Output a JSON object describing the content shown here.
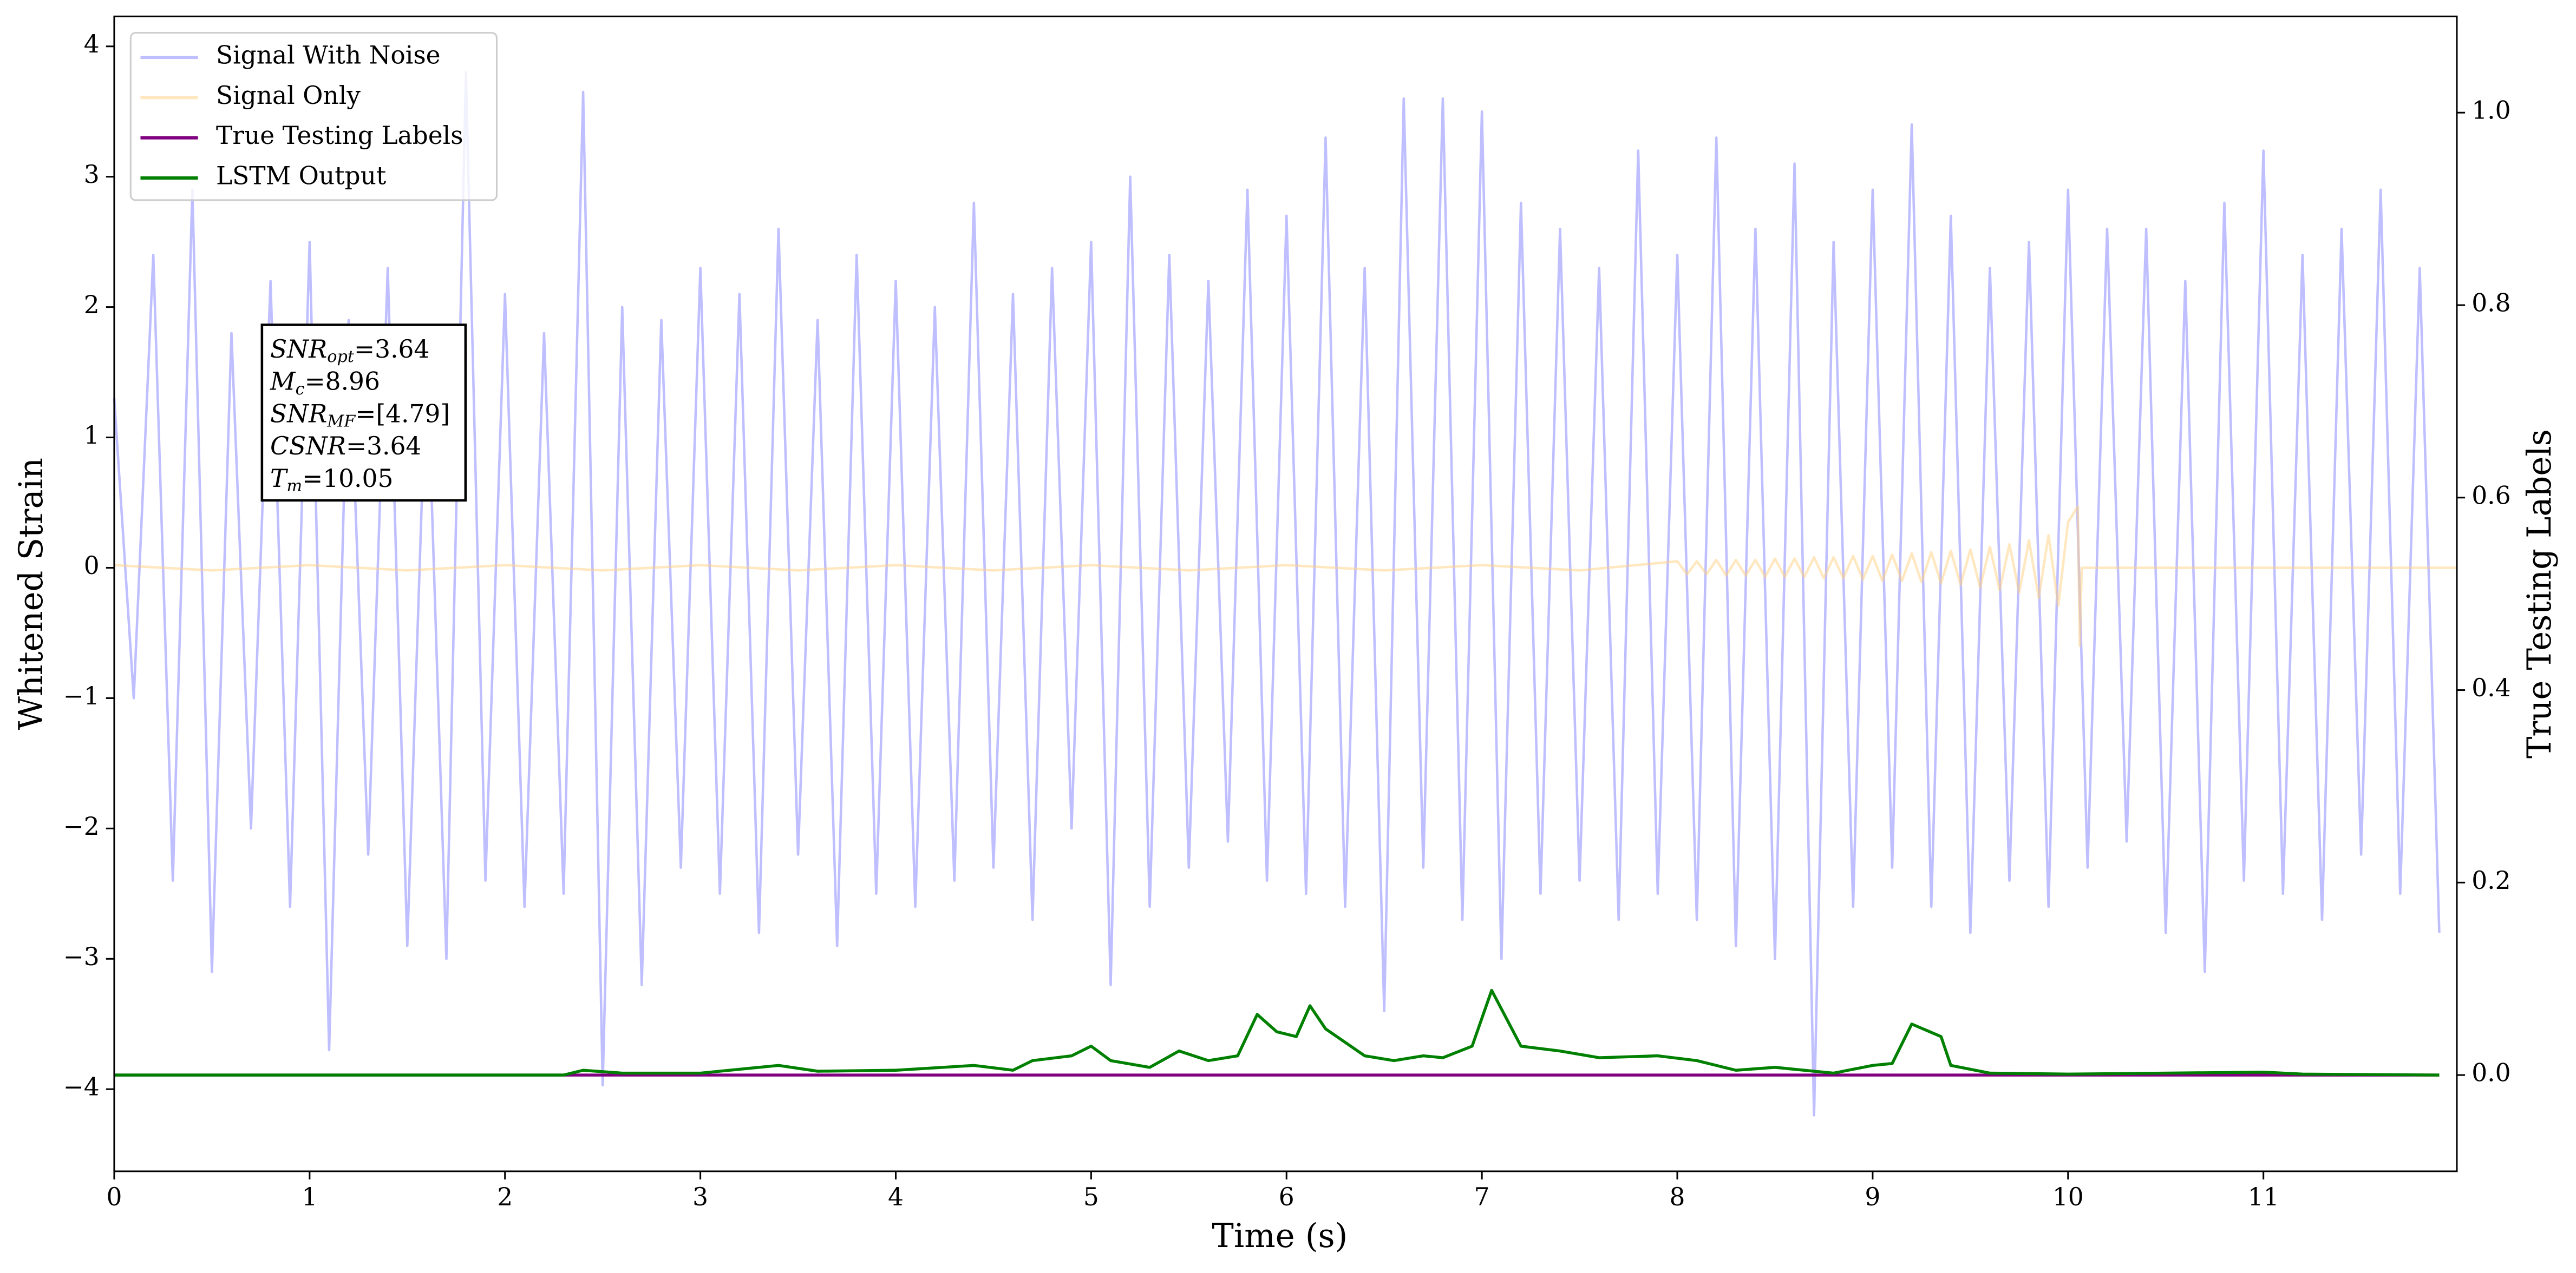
{
  "chart_data": {
    "type": "line",
    "xlabel": "Time (s)",
    "ylabel": "Whitened Strain",
    "y2label": "True Testing Labels",
    "xlim": [
      0,
      11.99
    ],
    "xticks": [
      0,
      1,
      2,
      3,
      4,
      5,
      6,
      7,
      8,
      9,
      10,
      11
    ],
    "ylim": [
      -4.63,
      4.23
    ],
    "yticks": [
      {
        "value": -4,
        "label": "−4"
      },
      {
        "value": -3,
        "label": "−3"
      },
      {
        "value": -2,
        "label": "−2"
      },
      {
        "value": -1,
        "label": "−1"
      },
      0,
      1,
      2,
      3,
      4
    ],
    "y2lim": [
      -0.1,
      1.1
    ],
    "y2ticks": [
      {
        "value": 0,
        "label": "0.0"
      },
      {
        "value": 0.2,
        "label": "0.2"
      },
      {
        "value": 0.4,
        "label": "0.4"
      },
      {
        "value": 0.6,
        "label": "0.6"
      },
      {
        "value": 0.8,
        "label": "0.8"
      },
      {
        "value": 1,
        "label": "1.0"
      }
    ],
    "legend": "upper left",
    "series": [
      {
        "name": "Signal With Noise",
        "color": "#8080ff",
        "x": [
          0,
          0.1,
          0.2,
          0.3,
          0.4,
          0.5,
          0.6,
          0.7,
          0.8,
          0.9,
          1,
          1.1,
          1.2,
          1.3,
          1.4,
          1.5,
          1.6,
          1.7,
          1.8,
          1.9,
          2,
          2.1,
          2.2,
          2.3,
          2.4,
          2.5,
          2.6,
          2.7,
          2.8,
          2.9,
          3,
          3.1,
          3.2,
          3.3,
          3.4,
          3.5,
          3.6,
          3.7,
          3.8,
          3.9,
          4,
          4.1,
          4.2,
          4.3,
          4.4,
          4.5,
          4.6,
          4.7,
          4.8,
          4.9,
          5,
          5.1,
          5.2,
          5.3,
          5.4,
          5.5,
          5.6,
          5.7,
          5.8,
          5.9,
          6,
          6.1,
          6.2,
          6.3,
          6.4,
          6.5,
          6.6,
          6.7,
          6.8,
          6.9,
          7,
          7.1,
          7.2,
          7.3,
          7.4,
          7.5,
          7.6,
          7.7,
          7.8,
          7.9,
          8,
          8.1,
          8.2,
          8.3,
          8.4,
          8.5,
          8.6,
          8.7,
          8.8,
          8.9,
          9,
          9.1,
          9.2,
          9.3,
          9.4,
          9.5,
          9.6,
          9.7,
          9.8,
          9.9,
          10,
          10.1,
          10.2,
          10.3,
          10.4,
          10.5,
          10.6,
          10.7,
          10.8,
          10.9,
          11,
          11.1,
          11.2,
          11.3,
          11.4,
          11.5,
          11.6,
          11.7,
          11.8,
          11.9
        ],
        "values": [
          1.3,
          -1.0,
          2.4,
          -2.4,
          2.9,
          -3.1,
          1.8,
          -2.0,
          2.2,
          -2.6,
          2.5,
          -3.7,
          1.9,
          -2.2,
          2.3,
          -2.9,
          1.7,
          -3.0,
          3.8,
          -2.4,
          2.1,
          -2.6,
          1.8,
          -2.5,
          3.65,
          -3.97,
          2.0,
          -3.2,
          1.9,
          -2.3,
          2.3,
          -2.5,
          2.1,
          -2.8,
          2.6,
          -2.2,
          1.9,
          -2.9,
          2.4,
          -2.5,
          2.2,
          -2.6,
          2.0,
          -2.4,
          2.8,
          -2.3,
          2.1,
          -2.7,
          2.3,
          -2.0,
          2.5,
          -3.2,
          3.0,
          -2.6,
          2.4,
          -2.3,
          2.2,
          -2.1,
          2.9,
          -2.4,
          2.7,
          -2.5,
          3.3,
          -2.6,
          2.3,
          -3.4,
          3.6,
          -2.3,
          3.6,
          -2.7,
          3.5,
          -3.0,
          2.8,
          -2.5,
          2.6,
          -2.4,
          2.3,
          -2.7,
          3.2,
          -2.5,
          2.4,
          -2.7,
          3.3,
          -2.9,
          2.6,
          -3.0,
          3.1,
          -4.2,
          2.5,
          -2.6,
          2.9,
          -2.3,
          3.4,
          -2.6,
          2.7,
          -2.8,
          2.3,
          -2.4,
          2.5,
          -2.6,
          2.9,
          -2.3,
          2.6,
          -2.1,
          2.6,
          -2.8,
          2.2,
          -3.1,
          2.8,
          -2.4,
          3.2,
          -2.5,
          2.4,
          -2.7,
          2.6,
          -2.2,
          2.9,
          -2.5,
          2.3,
          -2.8
        ]
      },
      {
        "name": "Signal Only",
        "color": "#ffd080",
        "x": [
          0,
          0.5,
          1,
          1.5,
          2,
          2.5,
          3,
          3.5,
          4,
          4.5,
          5,
          5.5,
          6,
          6.5,
          7,
          7.5,
          8,
          8.05,
          8.1,
          8.15,
          8.2,
          8.25,
          8.3,
          8.35,
          8.4,
          8.45,
          8.5,
          8.55,
          8.6,
          8.65,
          8.7,
          8.75,
          8.8,
          8.85,
          8.9,
          8.95,
          9,
          9.05,
          9.1,
          9.15,
          9.2,
          9.25,
          9.3,
          9.35,
          9.4,
          9.45,
          9.5,
          9.55,
          9.6,
          9.65,
          9.7,
          9.75,
          9.8,
          9.85,
          9.9,
          9.95,
          10,
          10.05,
          10.06,
          10.07,
          11.99
        ],
        "values": [
          0.02,
          -0.02,
          0.02,
          -0.02,
          0.02,
          -0.02,
          0.02,
          -0.02,
          0.02,
          -0.02,
          0.02,
          -0.02,
          0.02,
          -0.02,
          0.02,
          -0.02,
          0.05,
          -0.05,
          0.05,
          -0.05,
          0.06,
          -0.06,
          0.06,
          -0.06,
          0.06,
          -0.07,
          0.07,
          -0.07,
          0.07,
          -0.07,
          0.08,
          -0.08,
          0.08,
          -0.08,
          0.09,
          -0.09,
          0.09,
          -0.1,
          0.1,
          -0.1,
          0.11,
          -0.11,
          0.12,
          -0.12,
          0.13,
          -0.13,
          0.14,
          -0.15,
          0.16,
          -0.17,
          0.18,
          -0.19,
          0.21,
          -0.23,
          0.25,
          -0.29,
          0.35,
          0.47,
          -0.6,
          0,
          0
        ]
      },
      {
        "name": "True Testing Labels",
        "color": "#800080",
        "axis": "y2",
        "x": [
          0,
          11.9
        ],
        "values": [
          0,
          0
        ]
      },
      {
        "name": "LSTM Output",
        "color": "#008000",
        "axis": "y2",
        "x": [
          0,
          2.3,
          2.4,
          2.6,
          3.0,
          3.4,
          3.6,
          4.0,
          4.4,
          4.6,
          4.7,
          4.9,
          5.0,
          5.1,
          5.3,
          5.45,
          5.6,
          5.75,
          5.85,
          5.95,
          6.05,
          6.12,
          6.2,
          6.4,
          6.55,
          6.7,
          6.8,
          6.95,
          7.05,
          7.2,
          7.4,
          7.6,
          7.9,
          8.1,
          8.3,
          8.5,
          8.8,
          9.0,
          9.1,
          9.2,
          9.35,
          9.4,
          9.6,
          10.0,
          11.0,
          11.2,
          11.9
        ],
        "values": [
          0,
          0,
          0.005,
          0.002,
          0.002,
          0.01,
          0.004,
          0.005,
          0.01,
          0.005,
          0.015,
          0.02,
          0.03,
          0.015,
          0.008,
          0.025,
          0.015,
          0.02,
          0.063,
          0.045,
          0.04,
          0.072,
          0.048,
          0.02,
          0.015,
          0.02,
          0.018,
          0.03,
          0.088,
          0.03,
          0.025,
          0.018,
          0.02,
          0.015,
          0.005,
          0.008,
          0.002,
          0.01,
          0.012,
          0.053,
          0.04,
          0.01,
          0.002,
          0.001,
          0.003,
          0.001,
          0
        ]
      }
    ],
    "annotation": [
      {
        "main": "SNR",
        "sub": "opt",
        "rest": "=3.64"
      },
      {
        "main": "M",
        "sub": "c",
        "rest": "=8.96"
      },
      {
        "main": "SNR",
        "sub": "MF",
        "rest": "=[4.79]"
      },
      {
        "main": "CSNR",
        "rest": "=3.64"
      },
      {
        "main": "T",
        "sub": "m",
        "rest": "=10.05"
      }
    ]
  }
}
